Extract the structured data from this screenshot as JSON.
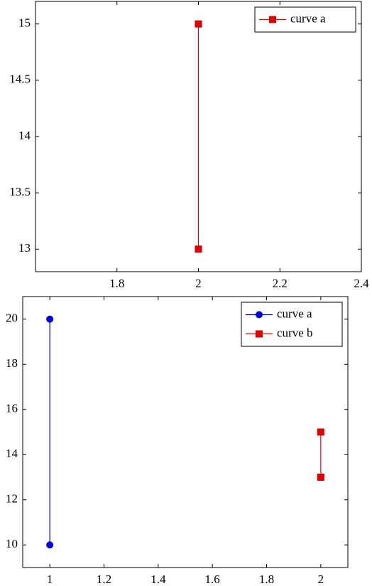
{
  "chart_data": [
    {
      "type": "line",
      "xlim": [
        1.6,
        2.4
      ],
      "xticks": [
        1.8,
        2,
        2.2,
        2.4
      ],
      "ylim": [
        12.8,
        15.2
      ],
      "yticks": [
        13,
        13.5,
        14,
        14.5,
        15
      ],
      "legend": "north east",
      "series": [
        {
          "name": "curve a",
          "color": "#dd0000",
          "marker": "square",
          "x": [
            2,
            2
          ],
          "values": [
            13,
            15
          ]
        }
      ]
    },
    {
      "type": "line",
      "xlim": [
        0.9,
        2.1
      ],
      "xticks": [
        1,
        1.2,
        1.4,
        1.6,
        1.8,
        2
      ],
      "ylim": [
        9,
        21
      ],
      "yticks": [
        10,
        12,
        14,
        16,
        18,
        20
      ],
      "legend": "north east",
      "series": [
        {
          "name": "curve a",
          "color": "#0000dd",
          "marker": "circle",
          "x": [
            1,
            1
          ],
          "values": [
            10,
            20
          ]
        },
        {
          "name": "curve b",
          "color": "#dd0000",
          "marker": "square",
          "x": [
            2,
            2
          ],
          "values": [
            13,
            15
          ]
        }
      ]
    }
  ]
}
